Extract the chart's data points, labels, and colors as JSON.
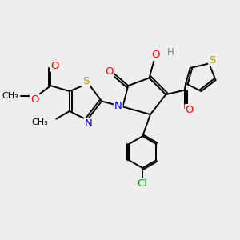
{
  "bg_color": "#eeeeee",
  "atom_colors": {
    "S": "#b8a000",
    "N": "#0000ff",
    "O": "#ff0000",
    "Cl": "#00aa00",
    "C": "#000000",
    "H": "#708090"
  },
  "bond_color": "#000000",
  "fs": 8.5,
  "fig_width": 3.0,
  "fig_height": 3.0,
  "dpi": 100
}
